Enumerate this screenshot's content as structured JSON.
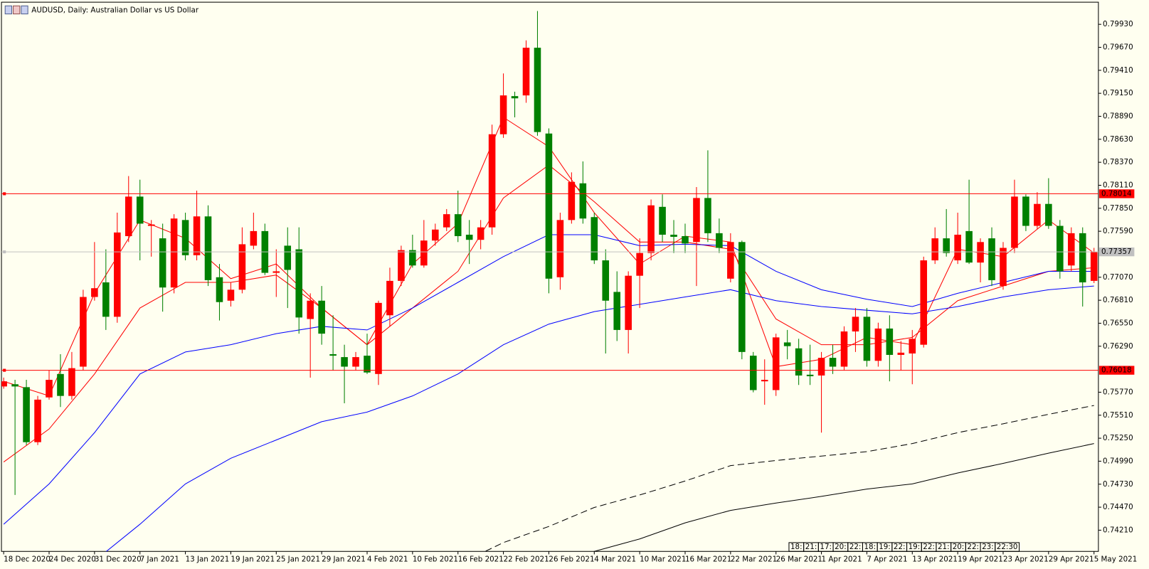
{
  "chart_data": {
    "type": "candlestick",
    "title": "AUDUSD, Daily:  Australian Dollar vs US Dollar",
    "categories": [
      "18 Dec 2020",
      null,
      null,
      null,
      "24 Dec 2020",
      null,
      null,
      null,
      "31 Dec 2020",
      null,
      null,
      null,
      "7 Jan 2021",
      null,
      null,
      null,
      "13 Jan 2021",
      null,
      null,
      null,
      "19 Jan 2021",
      null,
      null,
      null,
      "25 Jan 2021",
      null,
      null,
      null,
      "29 Jan 2021",
      null,
      null,
      null,
      "4 Feb 2021",
      null,
      null,
      null,
      "10 Feb 2021",
      null,
      null,
      null,
      "16 Feb 2021",
      null,
      null,
      null,
      "22 Feb 2021",
      null,
      null,
      null,
      "26 Feb 2021",
      null,
      null,
      null,
      "4 Mar 2021",
      null,
      null,
      null,
      "10 Mar 2021",
      null,
      null,
      null,
      "16 Mar 2021",
      null,
      null,
      null,
      "22 Mar 2021",
      null,
      null,
      null,
      "26 Mar 2021",
      null,
      null,
      null,
      "1 Apr 2021",
      null,
      null,
      null,
      "7 Apr 2021",
      null,
      null,
      null,
      "13 Apr 2021",
      null,
      null,
      null,
      "19 Apr 2021",
      null,
      null,
      null,
      "23 Apr 2021",
      null,
      null,
      null,
      "29 Apr 2021",
      null,
      null,
      null,
      "5 May 2021"
    ],
    "open": [
      0.75835,
      0.7586,
      0.75827,
      0.75205,
      0.75711,
      0.75976,
      0.75728,
      0.76059,
      0.76847,
      0.77012,
      0.76623,
      0.77535,
      0.77982,
      0.77651,
      0.7751,
      0.76954,
      0.77717,
      0.77319,
      0.77758,
      0.7707,
      0.76805,
      0.76929,
      0.77427,
      0.77592,
      0.7712,
      0.77427,
      0.77386,
      0.76598,
      0.76805,
      0.762,
      0.76167,
      0.76059,
      0.76183,
      0.75976,
      0.7664,
      0.77029,
      0.77377,
      0.77203,
      0.77485,
      0.77634,
      0.77783,
      0.77551,
      0.77493,
      0.77634,
      0.78687,
      0.79118,
      0.79126,
      0.79665,
      0.78695,
      0.7707,
      0.77717,
      0.78132,
      0.7775,
      0.77261,
      0.76904,
      0.76474,
      0.77087,
      0.77344,
      0.77866,
      0.77551,
      0.77535,
      0.77468,
      0.77966,
      0.77568,
      0.77054,
      0.77468,
      0.76183,
      0.75893,
      0.75794,
      0.76333,
      0.76266,
      0.75968,
      0.75959,
      0.76159,
      0.76059,
      0.76457,
      0.76623,
      0.76125,
      0.7649,
      0.76192,
      0.76208,
      0.76307,
      0.77261,
      0.7751,
      0.77261,
      0.77592,
      0.77236,
      0.7751,
      0.76971,
      0.77402,
      0.77982,
      0.77651,
      0.77899,
      0.77651,
      0.77203,
      0.77568,
      0.77029
    ],
    "high": [
      0.75935,
      0.7591,
      0.7591,
      0.75728,
      0.76018,
      0.762,
      0.76225,
      0.76929,
      0.77468,
      0.77386,
      0.778,
      0.78214,
      0.78173,
      0.77717,
      0.77676,
      0.77783,
      0.778,
      0.78049,
      0.77883,
      0.7722,
      0.77012,
      0.77634,
      0.778,
      0.77676,
      0.77386,
      0.77634,
      0.77634,
      0.76888,
      0.76971,
      0.7664,
      0.76307,
      0.76225,
      0.76432,
      0.76805,
      0.77178,
      0.77427,
      0.77551,
      0.77717,
      0.77676,
      0.77841,
      0.78049,
      0.77717,
      0.77717,
      0.78795,
      0.79375,
      0.79168,
      0.79748,
      0.8008,
      0.78753,
      0.778,
      0.78256,
      0.7838,
      0.778,
      0.77386,
      0.77137,
      0.77137,
      0.7751,
      0.77949,
      0.78007,
      0.77717,
      0.77676,
      0.7809,
      0.78505,
      0.77734,
      0.77568,
      0.77485,
      0.76225,
      0.76142,
      0.76432,
      0.76474,
      0.76374,
      0.76307,
      0.76225,
      0.76307,
      0.76515,
      0.76722,
      0.76722,
      0.76556,
      0.7664,
      0.76349,
      0.76474,
      0.77303,
      0.77634,
      0.77841,
      0.778,
      0.78173,
      0.7751,
      0.77634,
      0.77468,
      0.78173,
      0.78007,
      0.78032,
      0.7819,
      0.77717,
      0.77634,
      0.77634,
      0.77402
    ],
    "low": [
      0.7581,
      0.74608,
      0.75172,
      0.75172,
      0.75686,
      0.75603,
      0.75686,
      0.76018,
      0.76805,
      0.76474,
      0.76556,
      0.77468,
      0.77261,
      0.77303,
      0.76681,
      0.76888,
      0.77261,
      0.77261,
      0.76971,
      0.76581,
      0.76739,
      0.76888,
      0.77386,
      0.77095,
      0.76847,
      0.76722,
      0.76432,
      0.75935,
      0.76307,
      0.76018,
      0.75645,
      0.76018,
      0.75976,
      0.75852,
      0.76515,
      0.76971,
      0.77178,
      0.77178,
      0.77427,
      0.77592,
      0.77468,
      0.7722,
      0.77386,
      0.77551,
      0.78646,
      0.78878,
      0.79043,
      0.7867,
      0.76888,
      0.76929,
      0.77676,
      0.77676,
      0.7722,
      0.76208,
      0.76349,
      0.76208,
      0.76722,
      0.77261,
      0.77468,
      0.77344,
      0.77344,
      0.76971,
      0.77468,
      0.77344,
      0.77012,
      0.76142,
      0.75769,
      0.75628,
      0.75728,
      0.76142,
      0.75852,
      0.75852,
      0.75313,
      0.75976,
      0.76018,
      0.76225,
      0.76059,
      0.76059,
      0.75893,
      0.76018,
      0.7586,
      0.76275,
      0.7722,
      0.77303,
      0.7722,
      0.7722,
      0.77012,
      0.76971,
      0.76929,
      0.77344,
      0.77592,
      0.77617,
      0.77617,
      0.77054,
      0.77137,
      0.76739,
      0.77004
    ],
    "close": [
      0.75893,
      0.75835,
      0.75205,
      0.75686,
      0.7591,
      0.75728,
      0.76042,
      0.76847,
      0.76946,
      0.76623,
      0.77576,
      0.77982,
      0.77676,
      0.77667,
      0.76954,
      0.77734,
      0.77319,
      0.77758,
      0.77037,
      0.76789,
      0.76929,
      0.77443,
      0.77592,
      0.7712,
      0.77137,
      0.77153,
      0.76615,
      0.76805,
      0.76432,
      0.76183,
      0.76059,
      0.76167,
      0.75993,
      0.7678,
      0.77029,
      0.77377,
      0.77203,
      0.77485,
      0.77609,
      0.77783,
      0.77535,
      0.77493,
      0.77634,
      0.78687,
      0.79126,
      0.79093,
      0.79665,
      0.78712,
      0.77054,
      0.77717,
      0.78148,
      0.77734,
      0.77261,
      0.76805,
      0.76474,
      0.77087,
      0.77344,
      0.77883,
      0.77551,
      0.77527,
      0.77452,
      0.77966,
      0.77568,
      0.77402,
      0.77468,
      0.76225,
      0.75794,
      0.7591,
      0.7639,
      0.76291,
      0.75959,
      0.75951,
      0.76159,
      0.76059,
      0.76457,
      0.76623,
      0.76125,
      0.7649,
      0.76192,
      0.76217,
      0.76374,
      0.77261,
      0.7751,
      0.77344,
      0.77551,
      0.77236,
      0.77468,
      0.77037,
      0.77402,
      0.77982,
      0.77651,
      0.77899,
      0.77651,
      0.77137,
      0.77568,
      0.77012,
      0.77357
    ],
    "up_color": "#ff0000",
    "down_color": "#008000",
    "lines": [
      {
        "color": "#ff0000",
        "dash": false,
        "x": [
          "18 Dec 2020",
          "24 Dec 2020",
          "31 Dec 2020",
          "7 Jan 2021",
          "13 Jan 2021",
          "19 Jan 2021",
          "25 Jan 2021",
          "29 Jan 2021",
          "4 Feb 2021",
          "10 Feb 2021",
          "16 Feb 2021",
          "22 Feb 2021",
          "26 Feb 2021",
          "4 Mar 2021",
          "10 Mar 2021",
          "16 Mar 2021",
          "22 Mar 2021",
          "26 Mar 2021",
          "1 Apr 2021",
          "7 Apr 2021",
          "13 Apr 2021",
          "19 Apr 2021",
          "23 Apr 2021",
          "29 Apr 2021",
          "5 May 2021"
        ],
        "values": [
          0.75893,
          0.75728,
          0.76888,
          0.77717,
          0.7751,
          0.77054,
          0.7722,
          0.76722,
          0.76307,
          0.7722,
          0.77676,
          0.78878,
          0.78546,
          0.778,
          0.7722,
          0.77535,
          0.77468,
          0.76059,
          0.76142,
          0.7639,
          0.76307,
          0.77386,
          0.77303,
          0.77717,
          0.77344
        ]
      },
      {
        "color": "#ff0000",
        "dash": false,
        "x": [
          "18 Dec 2020",
          "24 Dec 2020",
          "31 Dec 2020",
          "7 Jan 2021",
          "13 Jan 2021",
          "19 Jan 2021",
          "25 Jan 2021",
          "29 Jan 2021",
          "4 Feb 2021",
          "10 Feb 2021",
          "16 Feb 2021",
          "22 Feb 2021",
          "26 Feb 2021",
          "4 Mar 2021",
          "10 Mar 2021",
          "16 Mar 2021",
          "22 Mar 2021",
          "26 Mar 2021",
          "1 Apr 2021",
          "7 Apr 2021",
          "13 Apr 2021",
          "19 Apr 2021",
          "23 Apr 2021",
          "29 Apr 2021",
          "5 May 2021"
        ],
        "values": [
          0.74981,
          0.75354,
          0.75976,
          0.76722,
          0.77012,
          0.77012,
          0.77095,
          0.76722,
          0.76307,
          0.76722,
          0.77137,
          0.77966,
          0.78339,
          0.77924,
          0.77468,
          0.77468,
          0.77386,
          0.76598,
          0.76307,
          0.76307,
          0.7639,
          0.76805,
          0.76971,
          0.77137,
          0.77178
        ]
      },
      {
        "color": "#0000ff",
        "dash": false,
        "x": [
          "18 Dec 2020",
          "24 Dec 2020",
          "31 Dec 2020",
          "7 Jan 2021",
          "13 Jan 2021",
          "19 Jan 2021",
          "25 Jan 2021",
          "29 Jan 2021",
          "4 Feb 2021",
          "10 Feb 2021",
          "16 Feb 2021",
          "22 Feb 2021",
          "26 Feb 2021",
          "4 Mar 2021",
          "10 Mar 2021",
          "16 Mar 2021",
          "22 Mar 2021",
          "26 Mar 2021",
          "1 Apr 2021",
          "7 Apr 2021",
          "13 Apr 2021",
          "19 Apr 2021",
          "23 Apr 2021",
          "29 Apr 2021",
          "5 May 2021"
        ],
        "values": [
          0.74277,
          0.74733,
          0.75313,
          0.75976,
          0.76225,
          0.76307,
          0.76432,
          0.76515,
          0.76474,
          0.76722,
          0.77012,
          0.77303,
          0.77551,
          0.77551,
          0.77427,
          0.77443,
          0.77427,
          0.77137,
          0.76929,
          0.76821,
          0.76739,
          0.76888,
          0.77012,
          0.77137,
          0.77137
        ]
      },
      {
        "color": "#0000ff",
        "dash": false,
        "x": [
          "18 Dec 2020",
          "24 Dec 2020",
          "31 Dec 2020",
          "7 Jan 2021",
          "13 Jan 2021",
          "19 Jan 2021",
          "25 Jan 2021",
          "29 Jan 2021",
          "4 Feb 2021",
          "10 Feb 2021",
          "16 Feb 2021",
          "22 Feb 2021",
          "26 Feb 2021",
          "4 Mar 2021",
          "10 Mar 2021",
          "16 Mar 2021",
          "22 Mar 2021",
          "26 Mar 2021",
          "1 Apr 2021",
          "7 Apr 2021",
          "13 Apr 2021",
          "19 Apr 2021",
          "23 Apr 2021",
          "29 Apr 2021",
          "5 May 2021"
        ],
        "values": [
          null,
          null,
          0.73862,
          0.74277,
          0.74733,
          0.75023,
          0.7523,
          0.75437,
          0.75545,
          0.75728,
          0.75976,
          0.76307,
          0.7654,
          0.76681,
          0.76764,
          0.76847,
          0.76929,
          0.76805,
          0.76739,
          0.76697,
          0.76656,
          0.76739,
          0.76847,
          0.76929,
          0.76971
        ]
      },
      {
        "color": "#000000",
        "dash": true,
        "x": [
          "18 Dec 2020",
          "24 Dec 2020",
          "31 Dec 2020",
          "7 Jan 2021",
          "13 Jan 2021",
          "19 Jan 2021",
          "25 Jan 2021",
          "29 Jan 2021",
          "4 Feb 2021",
          "10 Feb 2021",
          "16 Feb 2021",
          "22 Feb 2021",
          "26 Feb 2021",
          "4 Mar 2021",
          "10 Mar 2021",
          "16 Mar 2021",
          "22 Mar 2021",
          "26 Mar 2021",
          "1 Apr 2021",
          "7 Apr 2021",
          "13 Apr 2021",
          "19 Apr 2021",
          "23 Apr 2021",
          "29 Apr 2021",
          "5 May 2021"
        ],
        "values": [
          null,
          null,
          null,
          null,
          null,
          null,
          null,
          null,
          null,
          null,
          0.73821,
          0.7407,
          0.74252,
          0.74467,
          0.74608,
          0.74766,
          0.7494,
          0.74998,
          0.75048,
          0.75098,
          0.75189,
          0.75313,
          0.75413,
          0.7552,
          0.7562
        ]
      },
      {
        "color": "#000000",
        "dash": false,
        "x": [
          "18 Dec 2020",
          "24 Dec 2020",
          "31 Dec 2020",
          "7 Jan 2021",
          "13 Jan 2021",
          "19 Jan 2021",
          "25 Jan 2021",
          "29 Jan 2021",
          "4 Feb 2021",
          "10 Feb 2021",
          "16 Feb 2021",
          "22 Feb 2021",
          "26 Feb 2021",
          "4 Mar 2021",
          "10 Mar 2021",
          "16 Mar 2021",
          "22 Mar 2021",
          "26 Mar 2021",
          "1 Apr 2021",
          "7 Apr 2021",
          "13 Apr 2021",
          "19 Apr 2021",
          "23 Apr 2021",
          "29 Apr 2021",
          "5 May 2021"
        ],
        "values": [
          null,
          null,
          null,
          null,
          null,
          null,
          null,
          null,
          null,
          null,
          null,
          null,
          0.73805,
          0.7397,
          0.74111,
          0.74293,
          0.74434,
          0.74517,
          0.74592,
          0.74675,
          0.74733,
          0.74857,
          0.74965,
          0.75081,
          0.75189
        ]
      }
    ],
    "levels": [
      {
        "value": 0.78014,
        "label": "0.78014",
        "color": "#ff0000"
      },
      {
        "value": 0.76018,
        "label": "0.76018",
        "color": "#ff0000"
      }
    ],
    "current_price": {
      "value": 0.77357,
      "label": "0.77357",
      "color": "#c0c0c0"
    },
    "ylim": [
      0.7397,
      0.8018
    ],
    "yticks": [
      {
        "value": 0.7993,
        "label": "0.79930"
      },
      {
        "value": 0.7967,
        "label": "0.79670"
      },
      {
        "value": 0.7941,
        "label": "0.79410"
      },
      {
        "value": 0.7915,
        "label": "0.79150"
      },
      {
        "value": 0.7889,
        "label": "0.78890"
      },
      {
        "value": 0.7863,
        "label": "0.78630"
      },
      {
        "value": 0.7837,
        "label": "0.78370"
      },
      {
        "value": 0.7811,
        "label": "0.78110"
      },
      {
        "value": 0.7785,
        "label": "0.77850"
      },
      {
        "value": 0.7759,
        "label": "0.77590"
      },
      {
        "value": 0.7707,
        "label": "0.77070"
      },
      {
        "value": 0.7681,
        "label": "0.76810"
      },
      {
        "value": 0.7655,
        "label": "0.76550"
      },
      {
        "value": 0.7629,
        "label": "0.76290"
      },
      {
        "value": 0.7577,
        "label": "0.75770"
      },
      {
        "value": 0.7551,
        "label": "0.75510"
      },
      {
        "value": 0.7525,
        "label": "0.75250"
      },
      {
        "value": 0.7499,
        "label": "0.74990"
      },
      {
        "value": 0.7473,
        "label": "0.74730"
      },
      {
        "value": 0.7447,
        "label": "0.74470"
      },
      {
        "value": 0.7421,
        "label": "0.74210"
      }
    ],
    "grid": false,
    "time_tags": [
      "18:",
      "21:",
      "17:",
      "20:",
      "22:",
      "18:",
      "19:",
      "22:",
      "19:",
      "22:",
      "21:",
      "20:",
      "22:",
      "23:",
      "22:30"
    ]
  }
}
